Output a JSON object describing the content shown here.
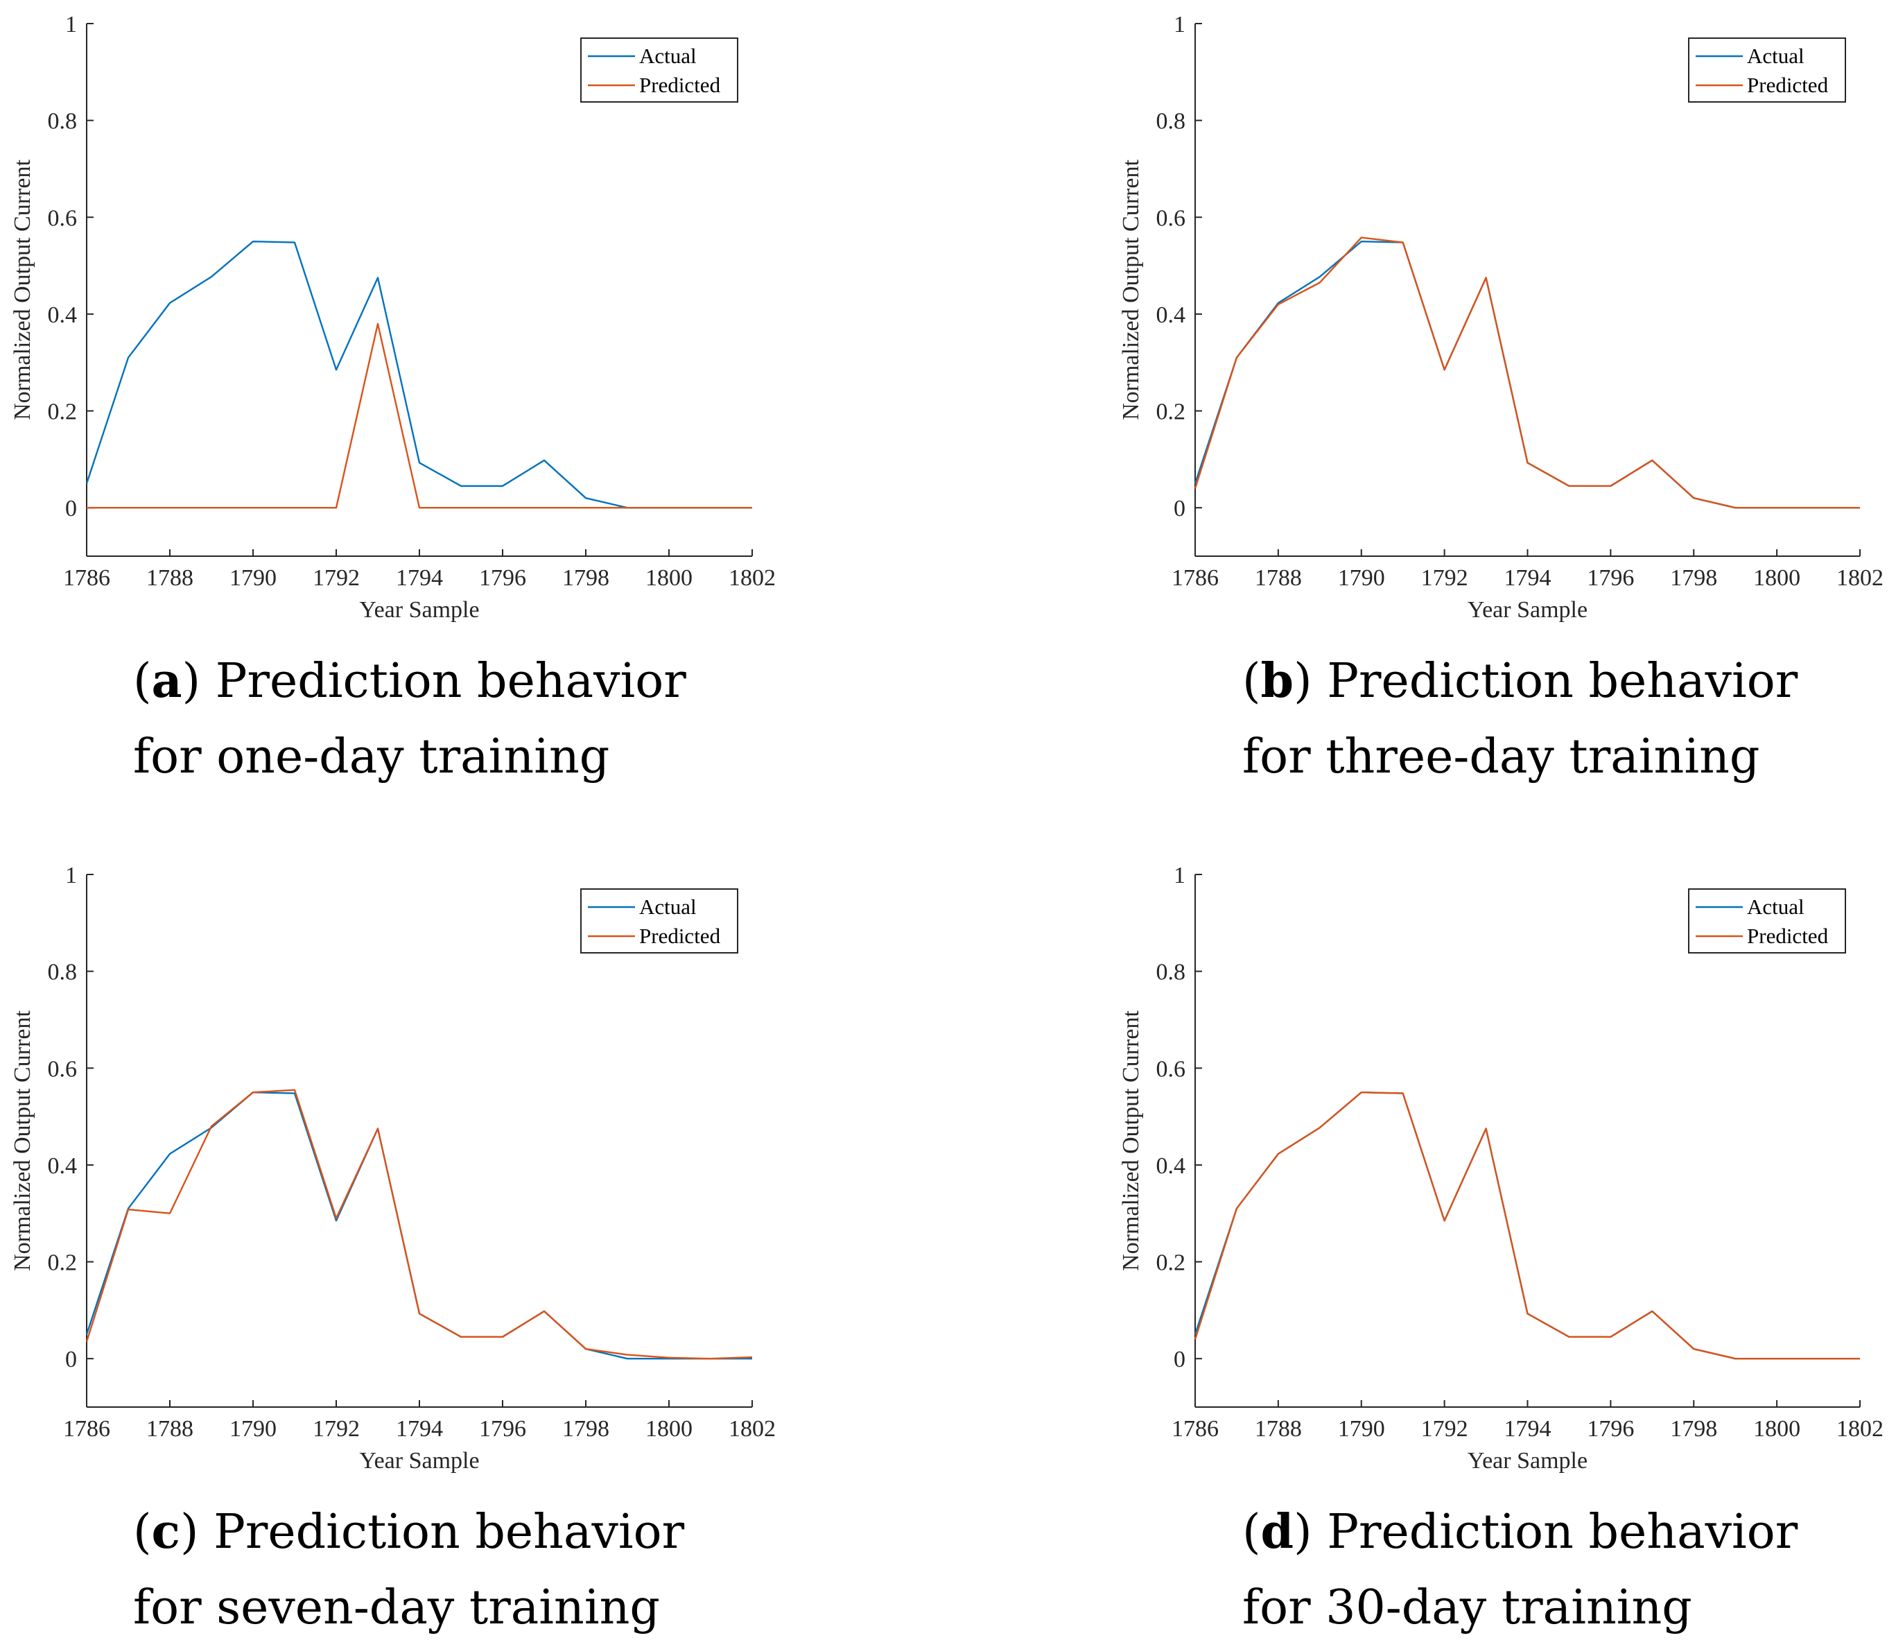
{
  "colors": {
    "actual": "#0072BD",
    "predicted": "#D95319",
    "axis": "#262626"
  },
  "chart_data": [
    {
      "type": "line",
      "id": "a",
      "caption": {
        "letter": "a",
        "line1": "Prediction behavior",
        "line2": "for one-day training"
      },
      "xlabel": "Year Sample",
      "ylabel": "Normalized Output Current",
      "xlim": [
        1786,
        1802
      ],
      "ylim": [
        -0.1,
        1
      ],
      "xticks": [
        "1786",
        "1788",
        "1790",
        "1792",
        "1794",
        "1796",
        "1798",
        "1800",
        "1802"
      ],
      "yticks": [
        "0",
        "0.2",
        "0.4",
        "0.6",
        "0.8",
        "1"
      ],
      "legend_position": "top-right",
      "x": [
        1786,
        1787,
        1788,
        1789,
        1790,
        1791,
        1792,
        1793,
        1794,
        1795,
        1796,
        1797,
        1798,
        1799,
        1800,
        1801,
        1802
      ],
      "series": [
        {
          "name": "Actual",
          "values": [
            0.05,
            0.31,
            0.423,
            0.477,
            0.55,
            0.548,
            0.285,
            0.475,
            0.093,
            0.045,
            0.045,
            0.098,
            0.02,
            0.0,
            0.0,
            0.0,
            0.0
          ]
        },
        {
          "name": "Predicted",
          "values": [
            0,
            0,
            0,
            0,
            0,
            0,
            0,
            0.38,
            0,
            0,
            0,
            0,
            0,
            0,
            0,
            0,
            0
          ]
        }
      ]
    },
    {
      "type": "line",
      "id": "b",
      "caption": {
        "letter": "b",
        "line1": "Prediction behavior",
        "line2": "for three-day training"
      },
      "xlabel": "Year Sample",
      "ylabel": "Normalized Output Current",
      "xlim": [
        1786,
        1802
      ],
      "ylim": [
        -0.1,
        1
      ],
      "xticks": [
        "1786",
        "1788",
        "1790",
        "1792",
        "1794",
        "1796",
        "1798",
        "1800",
        "1802"
      ],
      "yticks": [
        "0",
        "0.2",
        "0.4",
        "0.6",
        "0.8",
        "1"
      ],
      "legend_position": "top-right",
      "x": [
        1786,
        1787,
        1788,
        1789,
        1790,
        1791,
        1792,
        1793,
        1794,
        1795,
        1796,
        1797,
        1798,
        1799,
        1800,
        1801,
        1802
      ],
      "series": [
        {
          "name": "Actual",
          "values": [
            0.05,
            0.31,
            0.423,
            0.477,
            0.55,
            0.548,
            0.285,
            0.475,
            0.093,
            0.045,
            0.045,
            0.098,
            0.02,
            0.0,
            0.0,
            0.0,
            0.0
          ]
        },
        {
          "name": "Predicted",
          "values": [
            0.04,
            0.31,
            0.42,
            0.465,
            0.558,
            0.548,
            0.285,
            0.475,
            0.093,
            0.045,
            0.045,
            0.098,
            0.02,
            0.0,
            0.0,
            0.0,
            0.0
          ]
        }
      ]
    },
    {
      "type": "line",
      "id": "c",
      "caption": {
        "letter": "c",
        "line1": "Prediction behavior",
        "line2": "for seven-day training"
      },
      "xlabel": "Year Sample",
      "ylabel": "Normalized Output Current",
      "xlim": [
        1786,
        1802
      ],
      "ylim": [
        -0.1,
        1
      ],
      "xticks": [
        "1786",
        "1788",
        "1790",
        "1792",
        "1794",
        "1796",
        "1798",
        "1800",
        "1802"
      ],
      "yticks": [
        "0",
        "0.2",
        "0.4",
        "0.6",
        "0.8",
        "1"
      ],
      "legend_position": "top-right",
      "x": [
        1786,
        1787,
        1788,
        1789,
        1790,
        1791,
        1792,
        1793,
        1794,
        1795,
        1796,
        1797,
        1798,
        1799,
        1800,
        1801,
        1802
      ],
      "series": [
        {
          "name": "Actual",
          "values": [
            0.05,
            0.31,
            0.423,
            0.477,
            0.55,
            0.548,
            0.285,
            0.475,
            0.093,
            0.045,
            0.045,
            0.098,
            0.02,
            0.0,
            0.0,
            0.0,
            0.0
          ]
        },
        {
          "name": "Predicted",
          "values": [
            0.035,
            0.308,
            0.3,
            0.48,
            0.55,
            0.555,
            0.29,
            0.475,
            0.093,
            0.045,
            0.045,
            0.098,
            0.02,
            0.008,
            0.002,
            0.0,
            0.003
          ]
        }
      ]
    },
    {
      "type": "line",
      "id": "d",
      "caption": {
        "letter": "d",
        "line1": "Prediction behavior",
        "line2": "for 30-day training"
      },
      "xlabel": "Year Sample",
      "ylabel": "Normalized Output Current",
      "xlim": [
        1786,
        1802
      ],
      "ylim": [
        -0.1,
        1
      ],
      "xticks": [
        "1786",
        "1788",
        "1790",
        "1792",
        "1794",
        "1796",
        "1798",
        "1800",
        "1802"
      ],
      "yticks": [
        "0",
        "0.2",
        "0.4",
        "0.6",
        "0.8",
        "1"
      ],
      "legend_position": "top-right",
      "x": [
        1786,
        1787,
        1788,
        1789,
        1790,
        1791,
        1792,
        1793,
        1794,
        1795,
        1796,
        1797,
        1798,
        1799,
        1800,
        1801,
        1802
      ],
      "series": [
        {
          "name": "Actual",
          "values": [
            0.05,
            0.31,
            0.423,
            0.477,
            0.55,
            0.548,
            0.285,
            0.475,
            0.093,
            0.045,
            0.045,
            0.098,
            0.02,
            0.0,
            0.0,
            0.0,
            0.0
          ]
        },
        {
          "name": "Predicted",
          "values": [
            0.04,
            0.31,
            0.423,
            0.477,
            0.55,
            0.548,
            0.285,
            0.475,
            0.093,
            0.045,
            0.045,
            0.098,
            0.02,
            0.0,
            0.0,
            0.0,
            0.0
          ]
        }
      ]
    }
  ]
}
